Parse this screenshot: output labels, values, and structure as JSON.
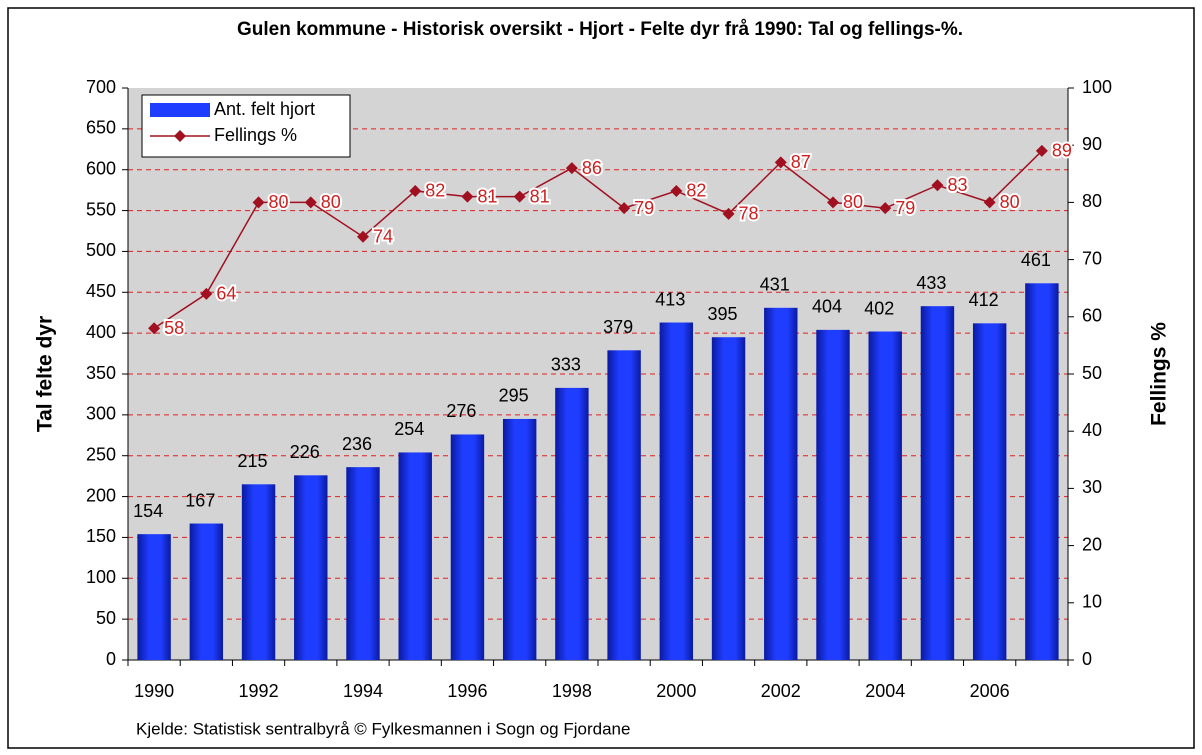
{
  "chart_data": {
    "type": "bar",
    "title": "Gulen kommune - Historisk oversikt - Hjort - Felte dyr frå 1990: Tal og fellings-%.",
    "ylabel": "Tal felte dyr",
    "y2label": "Fellings %",
    "source": "Kjelde: Statistisk sentralbyrå  © Fylkesmannen i Sogn og Fjordane",
    "categories": [
      "1990",
      null,
      "1992",
      null,
      "1994",
      null,
      "1996",
      null,
      "1998",
      null,
      "2000",
      null,
      "2002",
      null,
      "2004",
      null,
      "2006",
      null
    ],
    "series": [
      {
        "name": "Ant. felt hjort",
        "type": "bar",
        "color": "#1f3dff",
        "values": [
          154,
          167,
          215,
          226,
          236,
          254,
          276,
          295,
          333,
          379,
          413,
          395,
          431,
          404,
          402,
          433,
          412,
          461
        ]
      },
      {
        "name": "Fellings %",
        "type": "line",
        "axis": "y2",
        "color": "#a01020",
        "values": [
          58,
          64,
          80,
          80,
          74,
          82,
          81,
          81,
          86,
          79,
          82,
          78,
          87,
          80,
          79,
          83,
          80,
          89
        ]
      }
    ],
    "ylim": [
      0,
      700
    ],
    "yticks": [
      0,
      50,
      100,
      150,
      200,
      250,
      300,
      350,
      400,
      450,
      500,
      550,
      600,
      650,
      700
    ],
    "y2lim": [
      0,
      100
    ],
    "y2ticks": [
      0,
      10,
      20,
      30,
      40,
      50,
      60,
      70,
      80,
      90,
      100
    ],
    "grid": true,
    "grid_color": "#e02020",
    "plot_background": "#d4d4d4",
    "legend": "upper left"
  }
}
